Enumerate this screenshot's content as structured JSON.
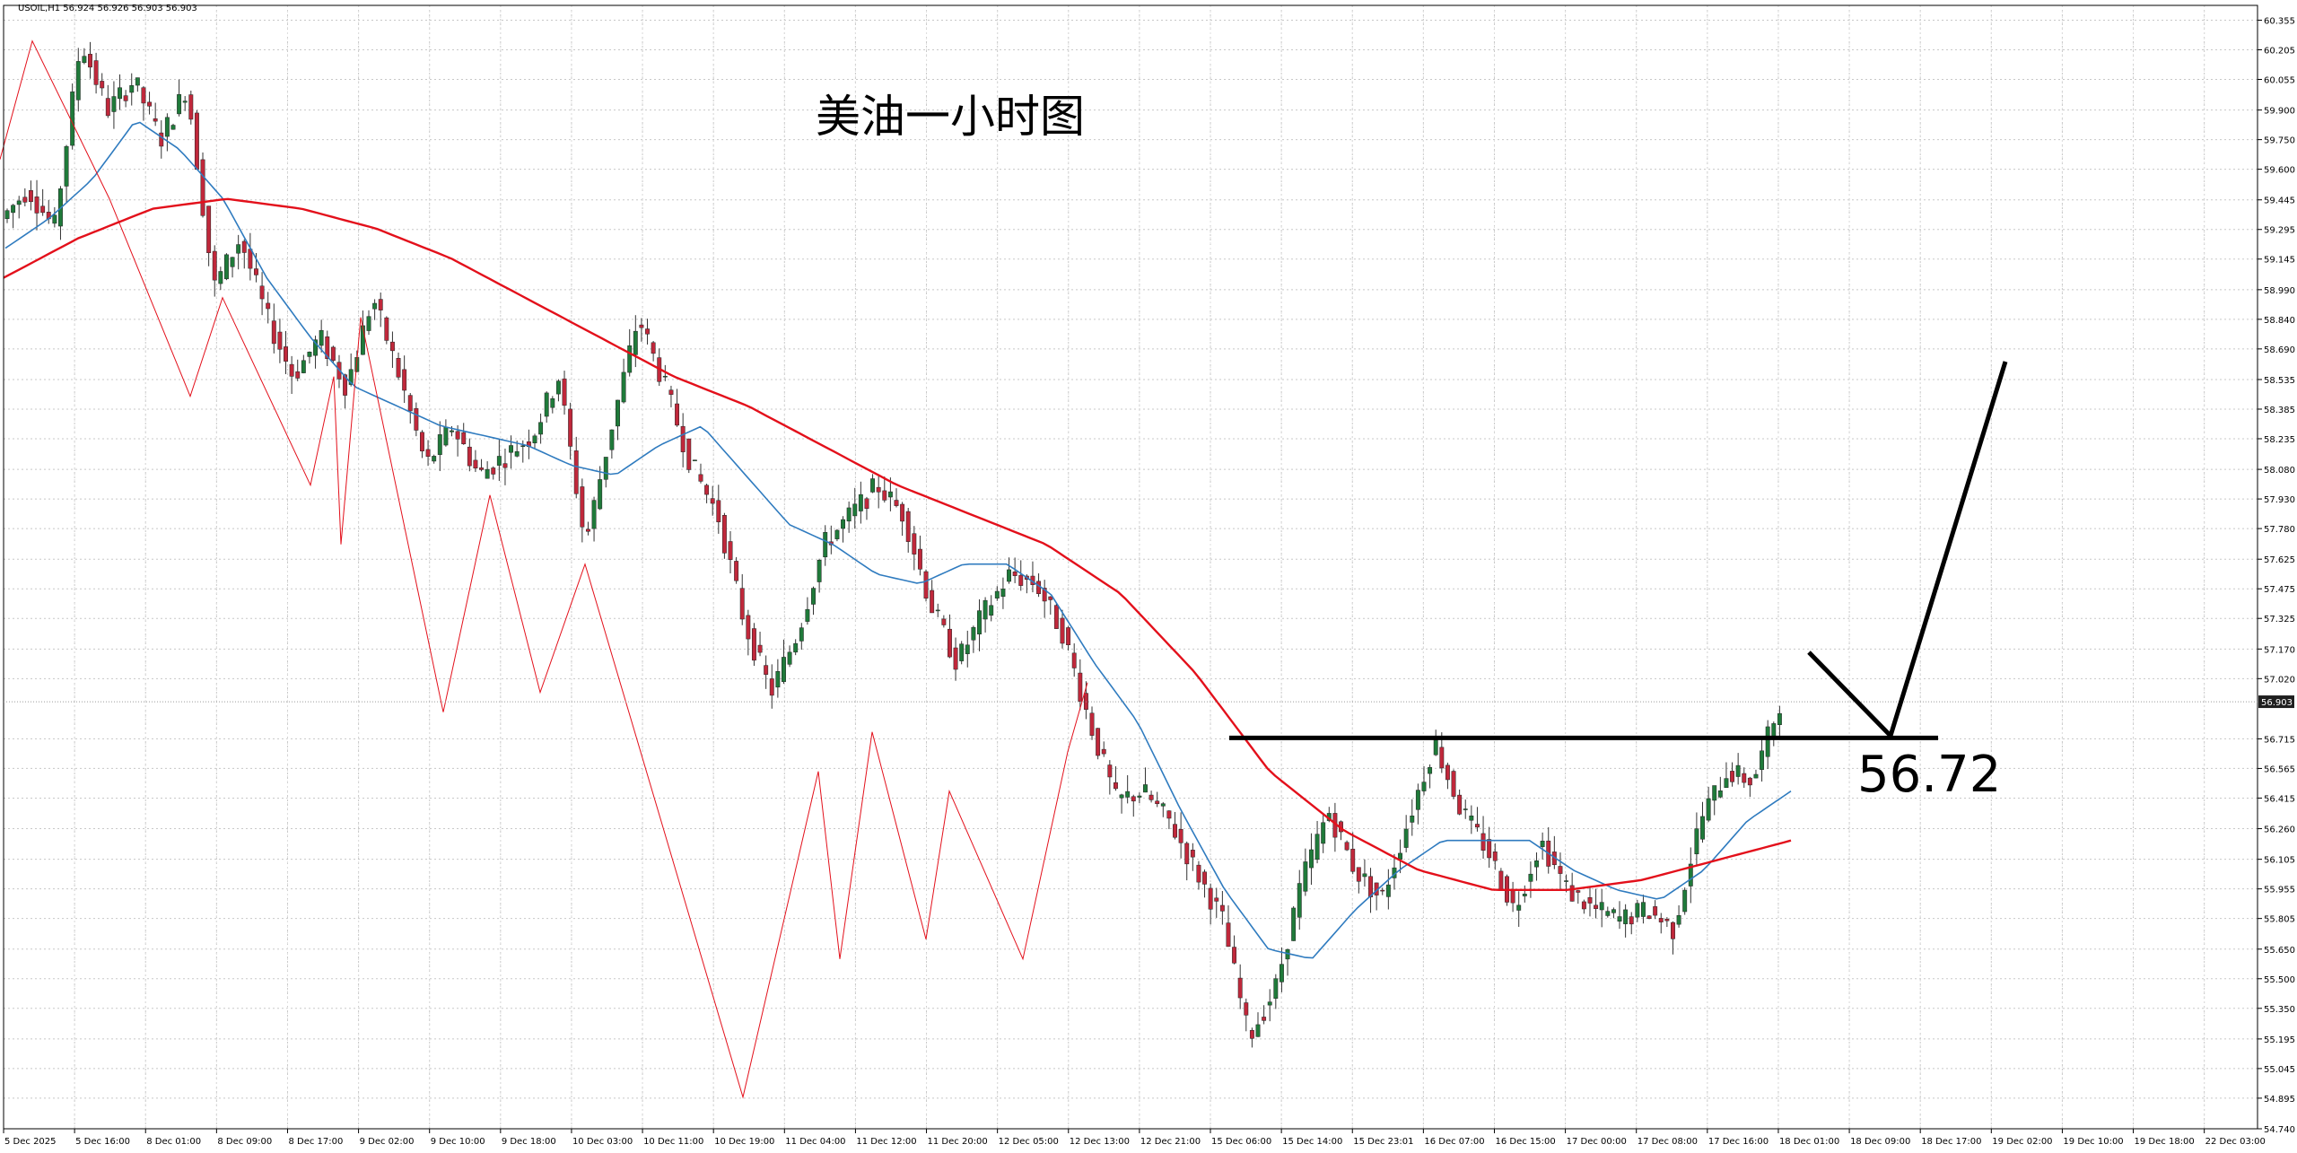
{
  "header": {
    "symbol_info": "USOIL,H1  56.924 56.926 56.903 56.903"
  },
  "annotations": {
    "title": "美油一小时图",
    "level_label": "56.72"
  },
  "colors": {
    "bull_candle": "#1f7a3a",
    "bear_candle": "#c0283b",
    "wick": "#333333",
    "ma_fast": "#2f7bbf",
    "ma_slow": "#e3101b",
    "zigzag": "#e3101b",
    "grid": "#c8c8c8",
    "level_line": "#000000",
    "price_tag_bg": "#1f1f1f"
  },
  "chart_data": {
    "type": "candlestick",
    "symbol": "USOIL",
    "timeframe": "H1",
    "grid": true,
    "ylim": [
      54.74,
      60.43
    ],
    "y_ticks": [
      "60.355",
      "60.205",
      "60.055",
      "59.900",
      "59.750",
      "59.600",
      "59.445",
      "59.295",
      "59.145",
      "58.990",
      "58.840",
      "58.690",
      "58.535",
      "58.385",
      "58.235",
      "58.080",
      "57.930",
      "57.780",
      "57.625",
      "57.475",
      "57.325",
      "57.170",
      "57.020",
      "56.715",
      "56.565",
      "56.415",
      "56.260",
      "56.105",
      "55.955",
      "55.805",
      "55.650",
      "55.500",
      "55.350",
      "55.195",
      "55.045",
      "54.895",
      "54.740"
    ],
    "current_price": 56.903,
    "current_price_label": "56.903",
    "x_ticks": [
      "5 Dec 2025",
      "5 Dec 16:00",
      "8 Dec 01:00",
      "8 Dec 09:00",
      "8 Dec 17:00",
      "9 Dec 02:00",
      "9 Dec 10:00",
      "9 Dec 18:00",
      "10 Dec 03:00",
      "10 Dec 11:00",
      "10 Dec 19:00",
      "11 Dec 04:00",
      "11 Dec 12:00",
      "11 Dec 20:00",
      "12 Dec 05:00",
      "12 Dec 13:00",
      "12 Dec 21:00",
      "15 Dec 06:00",
      "15 Dec 14:00",
      "15 Dec 23:01",
      "16 Dec 07:00",
      "16 Dec 15:00",
      "17 Dec 00:00",
      "17 Dec 08:00",
      "17 Dec 16:00",
      "18 Dec 01:00",
      "18 Dec 09:00",
      "18 Dec 17:00",
      "19 Dec 02:00",
      "19 Dec 10:00",
      "19 Dec 18:00",
      "22 Dec 03:00"
    ],
    "price_path": [
      59.35,
      59.5,
      59.3,
      60.25,
      59.9,
      60.05,
      59.75,
      60.02,
      59.0,
      59.25,
      58.85,
      58.55,
      58.75,
      58.5,
      58.95,
      58.55,
      58.1,
      58.3,
      58.05,
      58.15,
      58.25,
      58.55,
      57.7,
      58.3,
      58.85,
      58.5,
      58.1,
      57.85,
      57.3,
      56.95,
      57.25,
      57.7,
      57.85,
      58.0,
      57.85,
      57.4,
      57.1,
      57.35,
      57.55,
      57.5,
      57.25,
      56.8,
      56.4,
      56.45,
      56.3,
      56.05,
      55.8,
      55.2,
      55.45,
      56.0,
      56.35,
      56.05,
      55.9,
      56.3,
      56.7,
      56.35,
      56.15,
      55.85,
      56.2,
      55.95,
      55.85,
      55.8,
      55.85,
      55.75,
      56.3,
      56.55,
      56.5,
      56.9
    ],
    "ma_fast": [
      59.2,
      59.35,
      59.55,
      59.85,
      59.7,
      59.45,
      59.05,
      58.75,
      58.5,
      58.4,
      58.3,
      58.25,
      58.2,
      58.1,
      58.05,
      58.2,
      58.3,
      58.05,
      57.8,
      57.7,
      57.55,
      57.5,
      57.6,
      57.6,
      57.45,
      57.1,
      56.8,
      56.35,
      55.95,
      55.65,
      55.6,
      55.85,
      56.05,
      56.2,
      56.2,
      56.2,
      56.05,
      55.95,
      55.9,
      56.05,
      56.3,
      56.45
    ],
    "ma_slow": [
      59.05,
      59.25,
      59.4,
      59.45,
      59.4,
      59.3,
      59.15,
      58.95,
      58.75,
      58.55,
      58.4,
      58.2,
      58.0,
      57.85,
      57.7,
      57.45,
      57.05,
      56.55,
      56.25,
      56.05,
      55.95,
      55.95,
      56.0,
      56.1,
      56.2
    ],
    "zigzag": [
      [
        0,
        59.65
      ],
      [
        36,
        60.25
      ],
      [
        122,
        59.45
      ],
      [
        212,
        58.45
      ],
      [
        248,
        58.95
      ],
      [
        346,
        58.0
      ],
      [
        372,
        58.55
      ],
      [
        380,
        57.7
      ],
      [
        402,
        58.85
      ],
      [
        494,
        56.85
      ],
      [
        546,
        57.95
      ],
      [
        602,
        56.95
      ],
      [
        652,
        57.6
      ],
      [
        828,
        54.9
      ],
      [
        912,
        56.55
      ],
      [
        936,
        55.6
      ],
      [
        972,
        56.75
      ],
      [
        1032,
        55.7
      ],
      [
        1058,
        56.45
      ],
      [
        1140,
        55.6
      ],
      [
        1190,
        56.65
      ],
      [
        1212,
        57.0
      ]
    ]
  }
}
